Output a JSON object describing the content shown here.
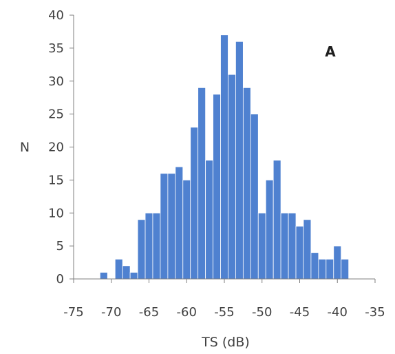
{
  "chart_data": {
    "type": "bar",
    "title": "",
    "annotation": "A",
    "xlabel": "TS (dB)",
    "ylabel": "N",
    "xlim": [
      -75,
      -35
    ],
    "ylim": [
      0,
      40
    ],
    "x_ticks": [
      "-75",
      "-70",
      "-65",
      "-60",
      "-55",
      "-50",
      "-45",
      "-40",
      "-35"
    ],
    "y_ticks": [
      "0",
      "5",
      "10",
      "15",
      "20",
      "25",
      "30",
      "35",
      "40"
    ],
    "bin_width": 1,
    "bar_color": "#4f81d0",
    "grid": false,
    "bins": [
      {
        "x": -71,
        "value": 1
      },
      {
        "x": -69,
        "value": 3
      },
      {
        "x": -68,
        "value": 2
      },
      {
        "x": -67,
        "value": 1
      },
      {
        "x": -66,
        "value": 9
      },
      {
        "x": -65,
        "value": 10
      },
      {
        "x": -64,
        "value": 10
      },
      {
        "x": -63,
        "value": 16
      },
      {
        "x": -62,
        "value": 16
      },
      {
        "x": -61,
        "value": 17
      },
      {
        "x": -60,
        "value": 15
      },
      {
        "x": -59,
        "value": 23
      },
      {
        "x": -58,
        "value": 29
      },
      {
        "x": -57,
        "value": 18
      },
      {
        "x": -56,
        "value": 28
      },
      {
        "x": -55,
        "value": 37
      },
      {
        "x": -54,
        "value": 31
      },
      {
        "x": -53,
        "value": 36
      },
      {
        "x": -52,
        "value": 29
      },
      {
        "x": -51,
        "value": 25
      },
      {
        "x": -50,
        "value": 10
      },
      {
        "x": -49,
        "value": 15
      },
      {
        "x": -48,
        "value": 18
      },
      {
        "x": -47,
        "value": 10
      },
      {
        "x": -46,
        "value": 10
      },
      {
        "x": -45,
        "value": 8
      },
      {
        "x": -44,
        "value": 9
      },
      {
        "x": -43,
        "value": 4
      },
      {
        "x": -42,
        "value": 3
      },
      {
        "x": -41,
        "value": 3
      },
      {
        "x": -40,
        "value": 5
      },
      {
        "x": -39,
        "value": 3
      }
    ]
  }
}
